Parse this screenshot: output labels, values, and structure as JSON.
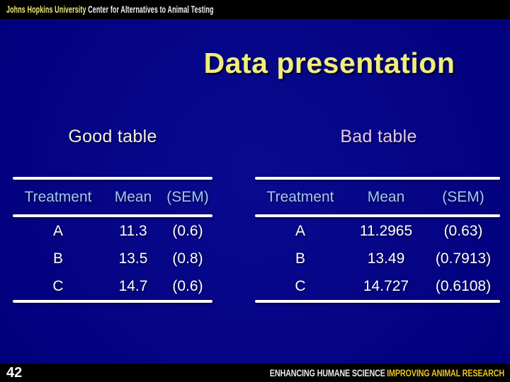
{
  "banner": {
    "university": "Johns Hopkins University",
    "center": "Center for Alternatives to Animal Testing"
  },
  "title": "Data presentation",
  "tables": [
    {
      "heading": "Good table",
      "columns": [
        "Treatment",
        "Mean",
        "(SEM)"
      ],
      "rows": [
        [
          "A",
          "11.3",
          "(0.6)"
        ],
        [
          "B",
          "13.5",
          "(0.8)"
        ],
        [
          "C",
          "14.7",
          "(0.6)"
        ]
      ]
    },
    {
      "heading": "Bad table",
      "columns": [
        "Treatment",
        "Mean",
        "(SEM)"
      ],
      "rows": [
        [
          "A",
          "11.2965",
          "(0.63)"
        ],
        [
          "B",
          "13.49",
          "(0.7913)"
        ],
        [
          "C",
          "14.727",
          "(0.6108)"
        ]
      ]
    }
  ],
  "footer": {
    "slide_number": "42",
    "tagline_white": "ENHANCING HUMANE SCIENCE",
    "tagline_yellow": "IMPROVING ANIMAL RESEARCH"
  },
  "colors": {
    "background_blue": "#0a0a90",
    "banner_black": "#000000",
    "title_yellow": "#f1ed7d",
    "heading_cream": "#f2f1da",
    "heading_pink": "#e5c8e8",
    "header_blue": "#a3c6f1",
    "cell_white": "#ffffff",
    "rule_white": "#ffffff",
    "footer_yellow": "#e6c325"
  }
}
